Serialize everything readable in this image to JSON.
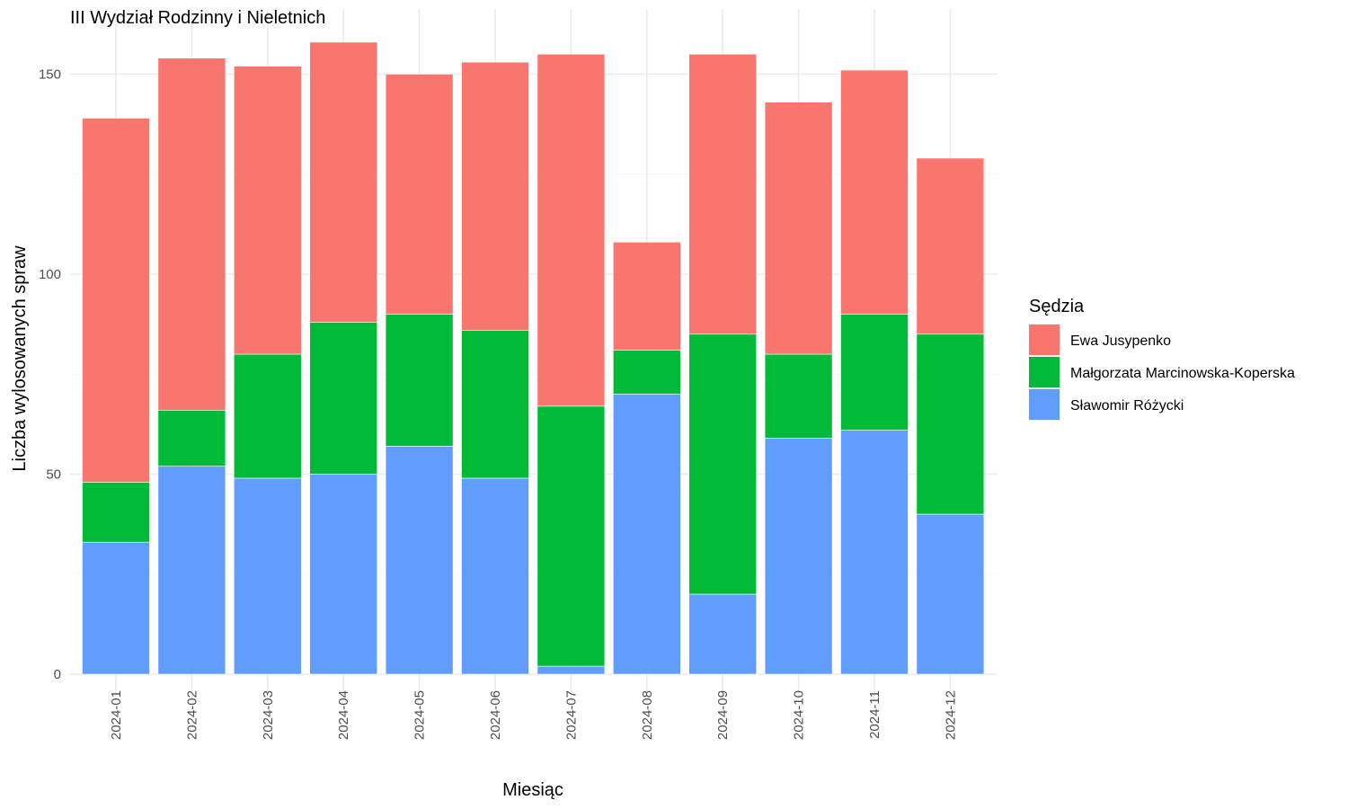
{
  "chart_data": {
    "type": "bar",
    "stacked": true,
    "title": "III Wydział Rodzinny i Nieletnich",
    "xlabel": "Miesiąc",
    "ylabel": "Liczba wylosowanych spraw",
    "ylim": [
      0,
      160
    ],
    "yticks": [
      0,
      50,
      100,
      150
    ],
    "grid": true,
    "legend": {
      "title": "Sędzia",
      "position": "right"
    },
    "categories": [
      "2024-01",
      "2024-02",
      "2024-03",
      "2024-04",
      "2024-05",
      "2024-06",
      "2024-07",
      "2024-08",
      "2024-09",
      "2024-10",
      "2024-11",
      "2024-12"
    ],
    "series": [
      {
        "name": "Sławomir Różycki",
        "color": "#619CFF",
        "values": [
          33,
          52,
          49,
          50,
          57,
          49,
          2,
          70,
          20,
          59,
          61,
          40
        ]
      },
      {
        "name": "Małgorzata Marcinowska-Koperska",
        "color": "#00BA38",
        "values": [
          15,
          14,
          31,
          38,
          33,
          37,
          65,
          11,
          65,
          21,
          29,
          45
        ]
      },
      {
        "name": "Ewa Jusypenko",
        "color": "#F8766D",
        "values": [
          91,
          88,
          72,
          70,
          60,
          67,
          88,
          27,
          70,
          63,
          61,
          44
        ]
      }
    ],
    "legend_order": [
      "Ewa Jusypenko",
      "Małgorzata Marcinowska-Koperska",
      "Sławomir Różycki"
    ]
  }
}
